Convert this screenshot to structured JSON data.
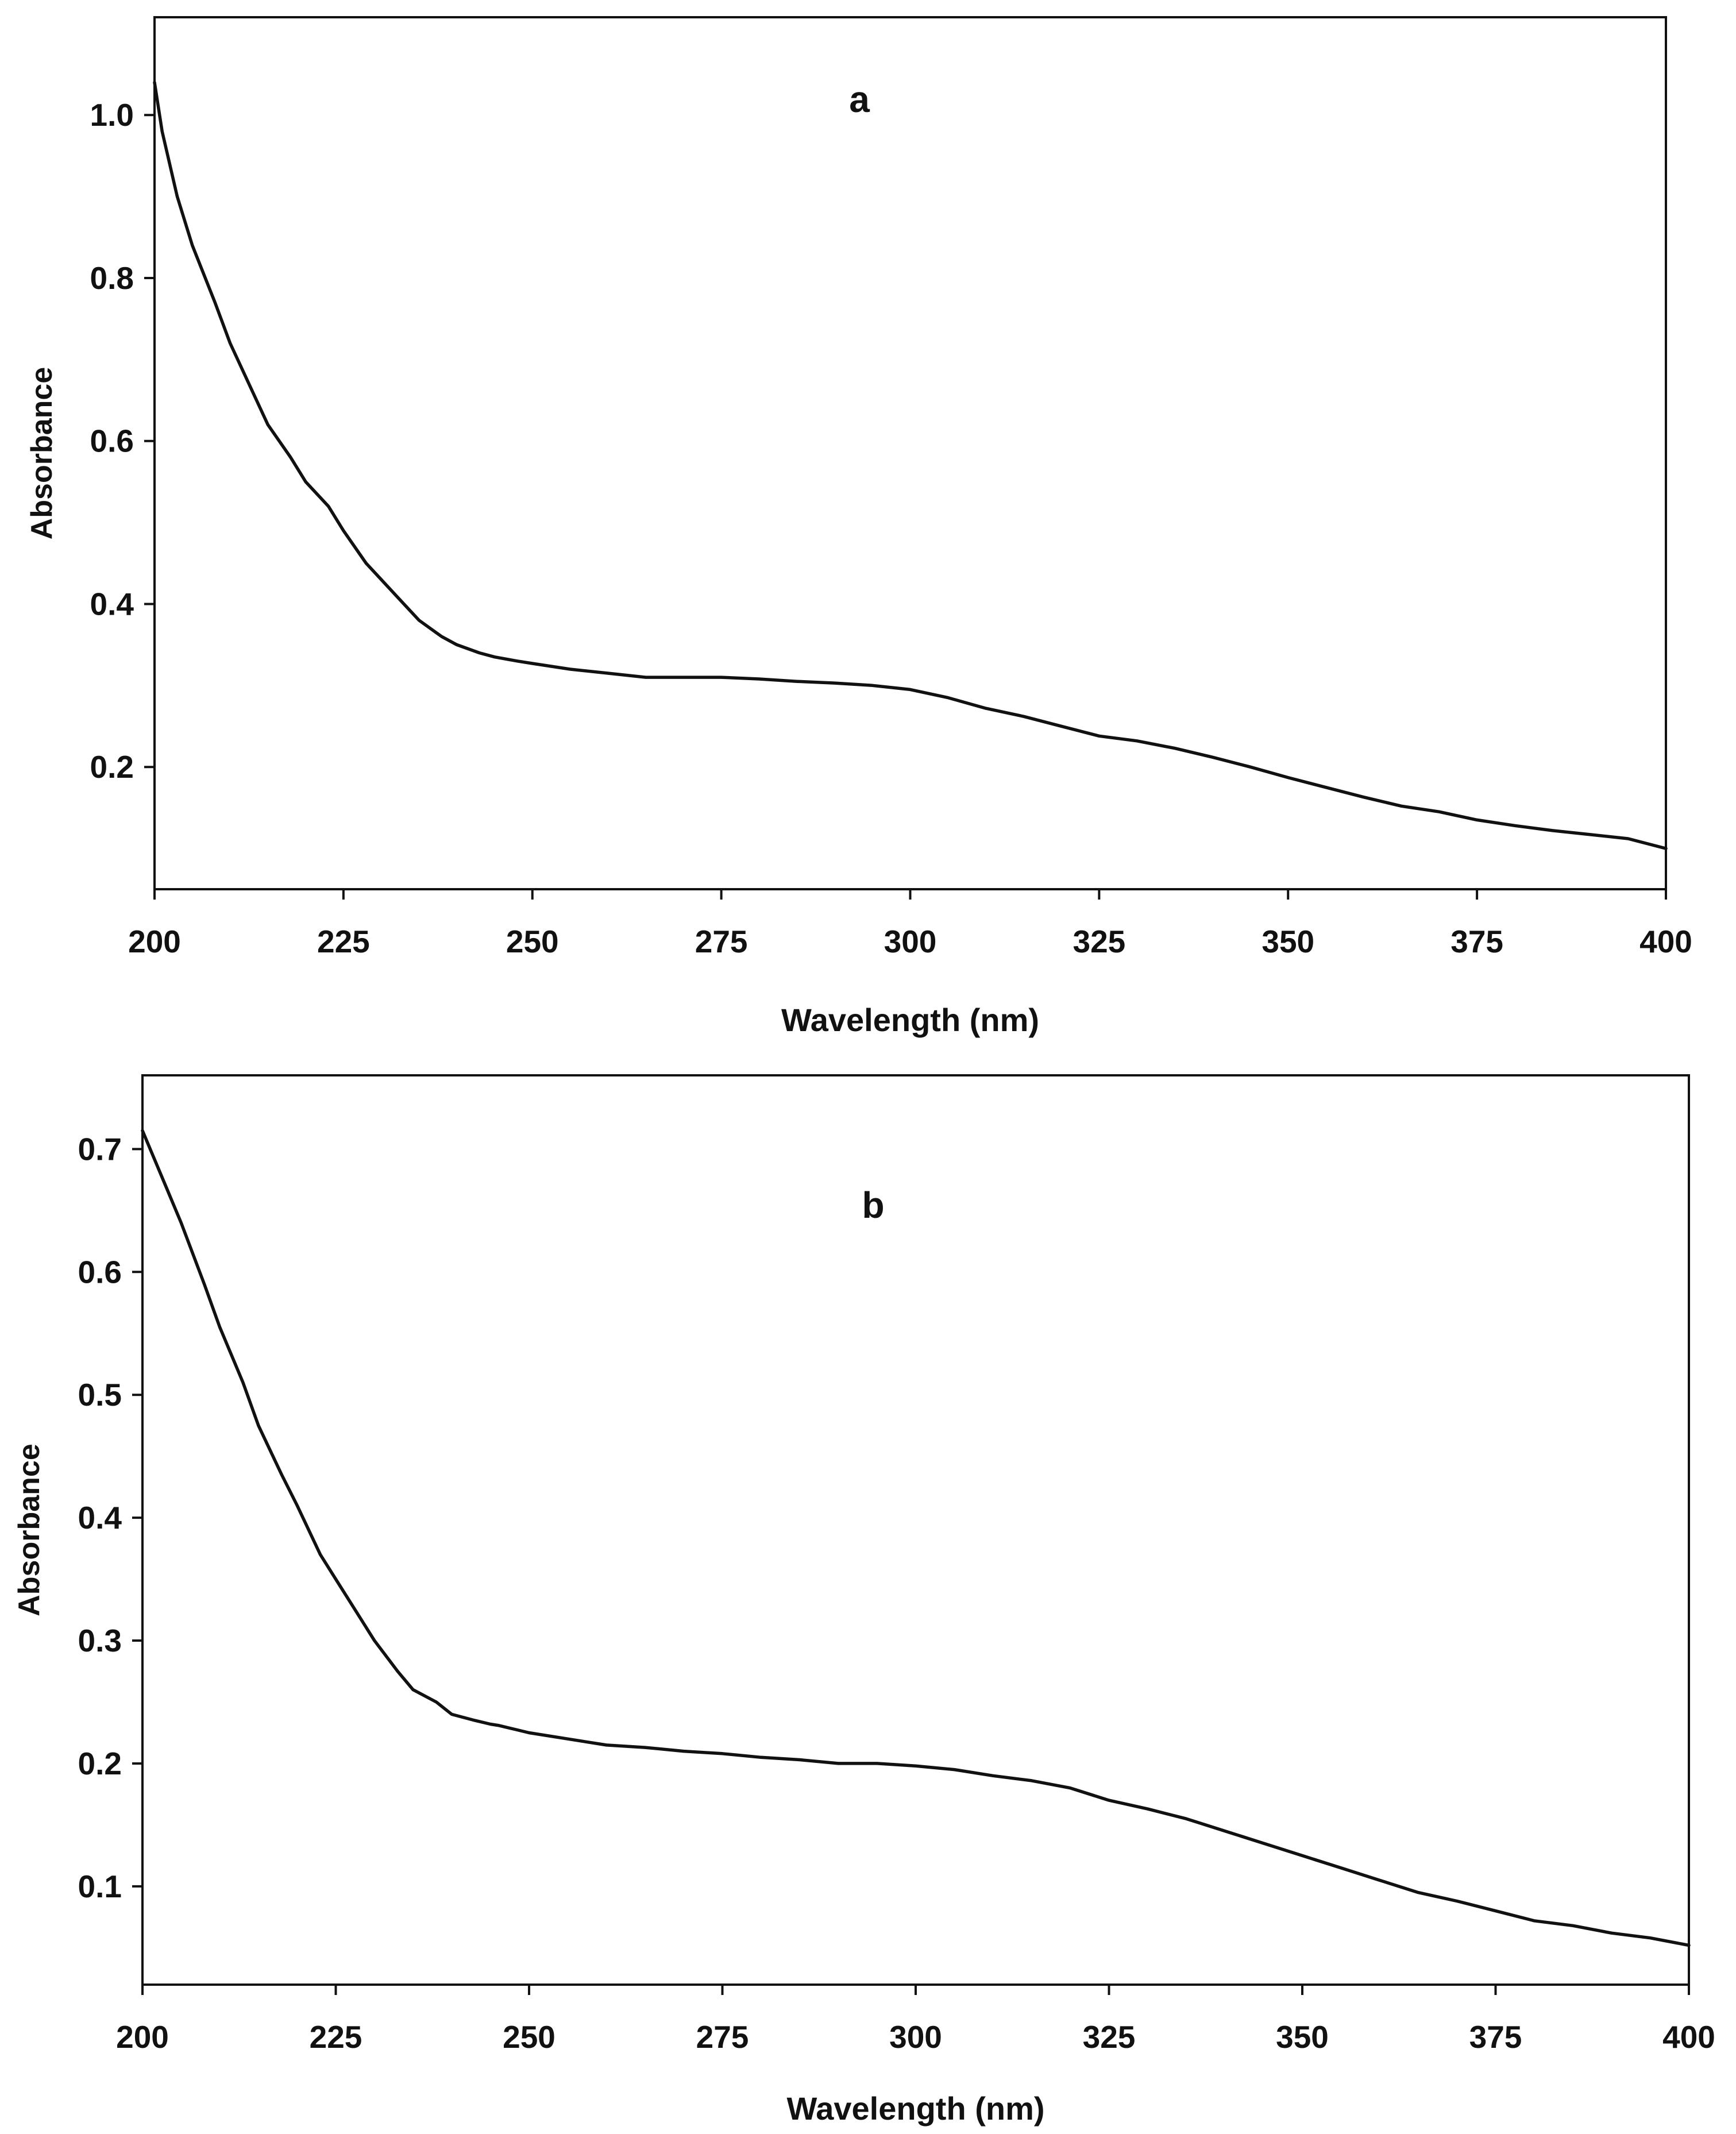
{
  "chart_data": [
    {
      "type": "line",
      "panel_label": "a",
      "xlabel": "Wavelength (nm)",
      "ylabel": "Absorbance",
      "xlim": [
        200,
        400
      ],
      "ylim": [
        0.05,
        1.12
      ],
      "xticks": [
        200,
        225,
        250,
        275,
        300,
        325,
        350,
        375,
        400
      ],
      "xtick_labels": [
        "200",
        "225",
        "250",
        "275",
        "300",
        "325",
        "350",
        "375",
        "400"
      ],
      "yticks": [
        0.2,
        0.4,
        0.6,
        0.8,
        1.0
      ],
      "ytick_labels": [
        "0.2",
        "0.4",
        "0.6",
        "0.8",
        "1.0"
      ],
      "grid": false,
      "series": [
        {
          "color": "#111111",
          "x": [
            200,
            201,
            203,
            205,
            208,
            210,
            213,
            215,
            218,
            220,
            223,
            225,
            228,
            230,
            233,
            235,
            238,
            240,
            243,
            245,
            248,
            250,
            255,
            260,
            265,
            270,
            275,
            280,
            285,
            290,
            295,
            300,
            305,
            310,
            315,
            320,
            325,
            330,
            335,
            340,
            345,
            350,
            355,
            360,
            365,
            370,
            375,
            380,
            385,
            390,
            395,
            400
          ],
          "y": [
            1.04,
            0.98,
            0.9,
            0.84,
            0.77,
            0.72,
            0.66,
            0.62,
            0.58,
            0.55,
            0.52,
            0.49,
            0.45,
            0.43,
            0.4,
            0.38,
            0.36,
            0.35,
            0.34,
            0.335,
            0.33,
            0.327,
            0.32,
            0.315,
            0.31,
            0.31,
            0.31,
            0.308,
            0.305,
            0.303,
            0.3,
            0.295,
            0.285,
            0.272,
            0.262,
            0.25,
            0.238,
            0.232,
            0.223,
            0.212,
            0.2,
            0.187,
            0.175,
            0.163,
            0.152,
            0.145,
            0.135,
            0.128,
            0.122,
            0.117,
            0.112,
            0.1
          ]
        }
      ]
    },
    {
      "type": "line",
      "panel_label": "b",
      "xlabel": "Wavelength (nm)",
      "ylabel": "Absorbance",
      "xlim": [
        200,
        400
      ],
      "ylim": [
        0.02,
        0.76
      ],
      "xticks": [
        200,
        225,
        250,
        275,
        300,
        325,
        350,
        375,
        400
      ],
      "xtick_labels": [
        "200",
        "225",
        "250",
        "275",
        "300",
        "325",
        "350",
        "375",
        "400"
      ],
      "yticks": [
        0.1,
        0.2,
        0.3,
        0.4,
        0.5,
        0.6,
        0.7
      ],
      "ytick_labels": [
        "0.1",
        "0.2",
        "0.3",
        "0.4",
        "0.5",
        "0.6",
        "0.7"
      ],
      "grid": false,
      "series": [
        {
          "color": "#111111",
          "x": [
            200,
            203,
            205,
            208,
            210,
            213,
            215,
            218,
            220,
            223,
            225,
            228,
            230,
            233,
            235,
            238,
            240,
            243,
            245,
            246,
            248,
            250,
            255,
            260,
            265,
            270,
            275,
            280,
            285,
            290,
            295,
            300,
            305,
            310,
            315,
            320,
            325,
            330,
            335,
            340,
            345,
            350,
            355,
            360,
            365,
            370,
            375,
            380,
            385,
            390,
            395,
            400
          ],
          "y": [
            0.715,
            0.67,
            0.64,
            0.59,
            0.555,
            0.51,
            0.475,
            0.435,
            0.41,
            0.37,
            0.35,
            0.32,
            0.3,
            0.275,
            0.26,
            0.25,
            0.24,
            0.235,
            0.232,
            0.231,
            0.228,
            0.225,
            0.22,
            0.215,
            0.213,
            0.21,
            0.208,
            0.205,
            0.203,
            0.2,
            0.2,
            0.198,
            0.195,
            0.19,
            0.186,
            0.18,
            0.17,
            0.163,
            0.155,
            0.145,
            0.135,
            0.125,
            0.115,
            0.105,
            0.095,
            0.088,
            0.08,
            0.072,
            0.068,
            0.062,
            0.058,
            0.052
          ]
        }
      ]
    }
  ]
}
